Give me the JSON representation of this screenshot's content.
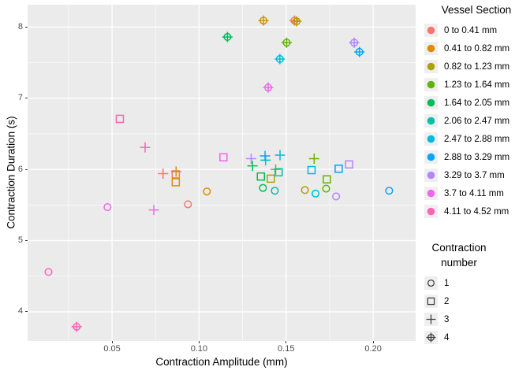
{
  "chart_data": {
    "type": "scatter",
    "title": "",
    "xlabel": "Contraction Amplitude (mm)",
    "ylabel": "Contraction Duration (s)",
    "xlim": [
      0.0015,
      0.2244
    ],
    "ylim": [
      3.59,
      8.313
    ],
    "x_ticks": [
      0.05,
      0.1,
      0.15,
      0.2
    ],
    "x_tick_labels": [
      "0.05",
      "0.10",
      "0.15",
      "0.20"
    ],
    "y_ticks": [
      4,
      5,
      6,
      7,
      8
    ],
    "y_tick_labels": [
      "4",
      "5",
      "6",
      "7",
      "8"
    ],
    "x_minor_ticks": [
      0.025,
      0.075,
      0.125,
      0.175
    ],
    "y_minor_ticks": [
      4.5,
      5.5,
      6.5,
      7.5
    ],
    "grid": true,
    "panel_bg": "#EBEBEB",
    "gridline_color": "#FFFFFF",
    "legend_position": "right",
    "color_legend": {
      "title": "Vessel Section",
      "entries": [
        {
          "label": "0 to 0.41 mm",
          "color": "#F8766D"
        },
        {
          "label": "0.41 to 0.82 mm",
          "color": "#DB8E00"
        },
        {
          "label": "0.82 to 1.23 mm",
          "color": "#AEA200"
        },
        {
          "label": "1.23 to 1.64 mm",
          "color": "#64B200"
        },
        {
          "label": "1.64 to 2.05 mm",
          "color": "#00BD5C"
        },
        {
          "label": "2.06 to 2.47 mm",
          "color": "#00C1A7"
        },
        {
          "label": "2.47 to 2.88 mm",
          "color": "#00BADE"
        },
        {
          "label": "2.88 to 3.29 mm",
          "color": "#00A6FF"
        },
        {
          "label": "3.29 to 3.7 mm",
          "color": "#B385FF"
        },
        {
          "label": "3.7 to 4.11 mm",
          "color": "#EF67EB"
        },
        {
          "label": "4.11 to 4.52 mm",
          "color": "#FF63B6"
        }
      ]
    },
    "shape_legend": {
      "title_line1": "Contraction",
      "title_line2": "number",
      "entries": [
        {
          "label": "1",
          "shape": "circle"
        },
        {
          "label": "2",
          "shape": "square"
        },
        {
          "label": "3",
          "shape": "plus"
        },
        {
          "label": "4",
          "shape": "circle-plus"
        }
      ]
    },
    "series": [
      {
        "name": "0 to 0.41 mm",
        "color": "#F8766D",
        "points": [
          {
            "x": 0.0936,
            "y": 5.51,
            "contraction": 1
          },
          {
            "x": 0.0866,
            "y": 5.93,
            "contraction": 2
          },
          {
            "x": 0.0793,
            "y": 5.94,
            "contraction": 3
          },
          {
            "x": 0.1548,
            "y": 8.09,
            "contraction": 4
          }
        ]
      },
      {
        "name": "0.41 to 0.82 mm",
        "color": "#DB8E00",
        "points": [
          {
            "x": 0.1045,
            "y": 5.69,
            "contraction": 1
          },
          {
            "x": 0.0866,
            "y": 5.82,
            "contraction": 2
          },
          {
            "x": 0.0868,
            "y": 5.97,
            "contraction": 3
          },
          {
            "x": 0.137,
            "y": 8.09,
            "contraction": 4
          }
        ]
      },
      {
        "name": "0.82 to 1.23 mm",
        "color": "#AEA200",
        "points": [
          {
            "x": 0.1608,
            "y": 5.71,
            "contraction": 1
          },
          {
            "x": 0.1412,
            "y": 5.87,
            "contraction": 2
          },
          {
            "x": 0.144,
            "y": 6.0,
            "contraction": 3
          },
          {
            "x": 0.156,
            "y": 8.08,
            "contraction": 4
          }
        ]
      },
      {
        "name": "1.23 to 1.64 mm",
        "color": "#64B200",
        "points": [
          {
            "x": 0.173,
            "y": 5.73,
            "contraction": 1
          },
          {
            "x": 0.1734,
            "y": 5.86,
            "contraction": 2
          },
          {
            "x": 0.1661,
            "y": 6.15,
            "contraction": 3
          },
          {
            "x": 0.1503,
            "y": 7.78,
            "contraction": 4
          }
        ]
      },
      {
        "name": "1.64 to 2.05 mm",
        "color": "#00BD5C",
        "points": [
          {
            "x": 0.1367,
            "y": 5.74,
            "contraction": 1
          },
          {
            "x": 0.1355,
            "y": 5.9,
            "contraction": 2
          },
          {
            "x": 0.1307,
            "y": 6.05,
            "contraction": 3
          },
          {
            "x": 0.1163,
            "y": 7.86,
            "contraction": 4
          }
        ]
      },
      {
        "name": "2.06 to 2.47 mm",
        "color": "#00C1A7",
        "points": [
          {
            "x": 0.1435,
            "y": 5.7,
            "contraction": 1
          },
          {
            "x": 0.1457,
            "y": 5.96,
            "contraction": 2
          },
          {
            "x": 0.1382,
            "y": 6.13,
            "contraction": 3
          }
        ]
      },
      {
        "name": "2.47 to 2.88 mm",
        "color": "#00BADE",
        "points": [
          {
            "x": 0.1669,
            "y": 5.66,
            "contraction": 1
          },
          {
            "x": 0.1646,
            "y": 5.99,
            "contraction": 2
          },
          {
            "x": 0.1465,
            "y": 6.2,
            "contraction": 3
          },
          {
            "x": 0.1464,
            "y": 7.55,
            "contraction": 4
          }
        ]
      },
      {
        "name": "2.88 to 3.29 mm",
        "color": "#00A6FF",
        "points": [
          {
            "x": 0.2092,
            "y": 5.7,
            "contraction": 1
          },
          {
            "x": 0.1802,
            "y": 6.01,
            "contraction": 2
          },
          {
            "x": 0.1379,
            "y": 6.19,
            "contraction": 3
          },
          {
            "x": 0.1921,
            "y": 7.65,
            "contraction": 4
          }
        ]
      },
      {
        "name": "3.29 to 3.7 mm",
        "color": "#B385FF",
        "points": [
          {
            "x": 0.1787,
            "y": 5.62,
            "contraction": 1
          },
          {
            "x": 0.1862,
            "y": 6.07,
            "contraction": 2
          },
          {
            "x": 0.1299,
            "y": 6.15,
            "contraction": 3
          },
          {
            "x": 0.1891,
            "y": 7.78,
            "contraction": 4
          }
        ]
      },
      {
        "name": "3.7 to 4.11 mm",
        "color": "#EF67EB",
        "points": [
          {
            "x": 0.0474,
            "y": 5.47,
            "contraction": 1
          },
          {
            "x": 0.114,
            "y": 6.17,
            "contraction": 2
          },
          {
            "x": 0.074,
            "y": 5.43,
            "contraction": 3
          },
          {
            "x": 0.1397,
            "y": 7.15,
            "contraction": 4
          }
        ]
      },
      {
        "name": "4.11 to 4.52 mm",
        "color": "#FF63B6",
        "points": [
          {
            "x": 0.0135,
            "y": 4.56,
            "contraction": 1
          },
          {
            "x": 0.0545,
            "y": 6.71,
            "contraction": 2
          },
          {
            "x": 0.069,
            "y": 6.31,
            "contraction": 3
          },
          {
            "x": 0.0297,
            "y": 3.79,
            "contraction": 4
          }
        ]
      }
    ]
  }
}
